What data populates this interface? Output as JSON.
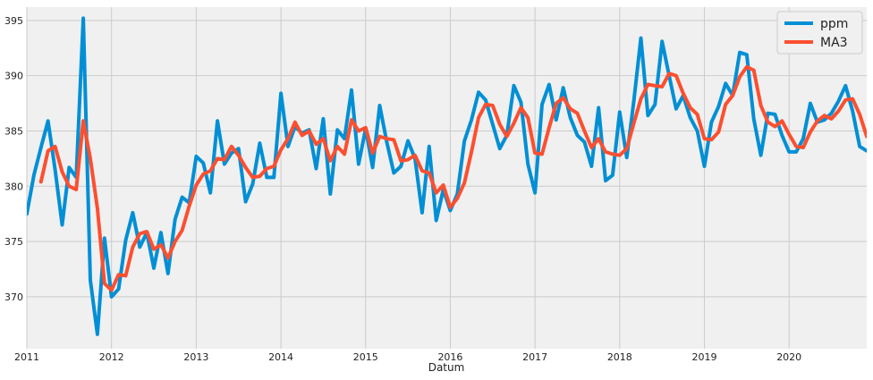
{
  "chart_data": {
    "type": "line",
    "title": "",
    "xlabel": "Datum",
    "ylabel": "",
    "x_start": "2011-01",
    "x_end": "2020-12",
    "x_ticks": [
      "2011",
      "2012",
      "2013",
      "2014",
      "2015",
      "2016",
      "2017",
      "2018",
      "2019",
      "2020"
    ],
    "y_ticks": [
      370,
      375,
      380,
      385,
      390,
      395
    ],
    "ylim": [
      365.3,
      396.2
    ],
    "grid": true,
    "legend_position": "top-right",
    "series": [
      {
        "name": "ppm",
        "color": "#008fd5",
        "values": [
          377.5,
          381.0,
          383.5,
          385.9,
          381.5,
          376.5,
          381.7,
          380.8,
          395.2,
          371.5,
          366.6,
          375.3,
          370.0,
          370.7,
          375.1,
          377.6,
          374.5,
          375.8,
          372.6,
          375.8,
          372.1,
          377.0,
          379.0,
          378.5,
          382.7,
          382.1,
          379.4,
          385.9,
          382.0,
          383.0,
          383.4,
          378.6,
          380.2,
          383.9,
          380.8,
          380.8,
          388.4,
          383.6,
          385.4,
          384.8,
          385.1,
          381.6,
          386.1,
          379.3,
          385.1,
          384.3,
          388.7,
          382.0,
          385.2,
          381.7,
          387.3,
          384.0,
          381.2,
          381.8,
          384.1,
          382.5,
          377.6,
          383.6,
          376.9,
          379.7,
          377.8,
          379.3,
          384.1,
          386.0,
          388.5,
          387.8,
          385.6,
          383.4,
          384.6,
          389.1,
          387.6,
          382.0,
          379.4,
          387.4,
          389.2,
          386.0,
          388.9,
          386.2,
          384.6,
          384.0,
          381.8,
          387.1,
          380.5,
          381.0,
          386.7,
          382.6,
          387.7,
          393.4,
          386.4,
          387.4,
          393.1,
          390.0,
          387.0,
          388.2,
          386.2,
          385.0,
          381.8,
          385.8,
          387.2,
          389.3,
          388.2,
          392.1,
          391.9,
          386.1,
          382.8,
          386.6,
          386.5,
          384.6,
          383.1,
          383.1,
          384.3,
          387.5,
          385.8,
          386.0,
          386.6,
          387.7,
          389.1,
          386.8,
          383.6,
          383.2
        ]
      },
      {
        "name": "MA3",
        "color": "#fc4f30",
        "values": [
          null,
          null,
          380.4,
          383.2,
          383.6,
          381.3,
          380.0,
          379.7,
          385.9,
          382.5,
          378.0,
          371.2,
          370.6,
          372.0,
          371.9,
          374.5,
          375.7,
          375.9,
          374.3,
          374.7,
          373.5,
          375.0,
          376.0,
          378.2,
          380.1,
          381.1,
          381.4,
          382.5,
          382.4,
          383.6,
          382.8,
          381.7,
          380.8,
          380.9,
          381.6,
          381.8,
          383.3,
          384.3,
          385.8,
          384.6,
          385.0,
          383.8,
          384.3,
          382.3,
          383.6,
          382.9,
          386.0,
          385.0,
          385.3,
          383.0,
          384.5,
          384.3,
          384.2,
          382.3,
          382.4,
          382.8,
          381.4,
          381.2,
          379.4,
          380.1,
          378.1,
          378.9,
          380.3,
          383.1,
          386.2,
          387.4,
          387.3,
          385.6,
          384.5,
          385.7,
          387.1,
          386.2,
          383.0,
          382.9,
          385.3,
          387.5,
          388.0,
          387.0,
          386.6,
          385.0,
          383.5,
          384.3,
          383.1,
          382.9,
          382.8,
          383.4,
          385.7,
          387.9,
          389.2,
          389.1,
          389.0,
          390.2,
          390.0,
          388.4,
          387.1,
          386.5,
          384.3,
          384.2,
          384.9,
          387.4,
          388.2,
          389.9,
          390.8,
          390.5,
          387.3,
          385.8,
          385.4,
          385.9,
          384.7,
          383.6,
          383.5,
          384.9,
          385.9,
          386.4,
          386.1,
          386.8,
          387.8,
          387.9,
          386.5,
          384.5
        ]
      }
    ]
  }
}
